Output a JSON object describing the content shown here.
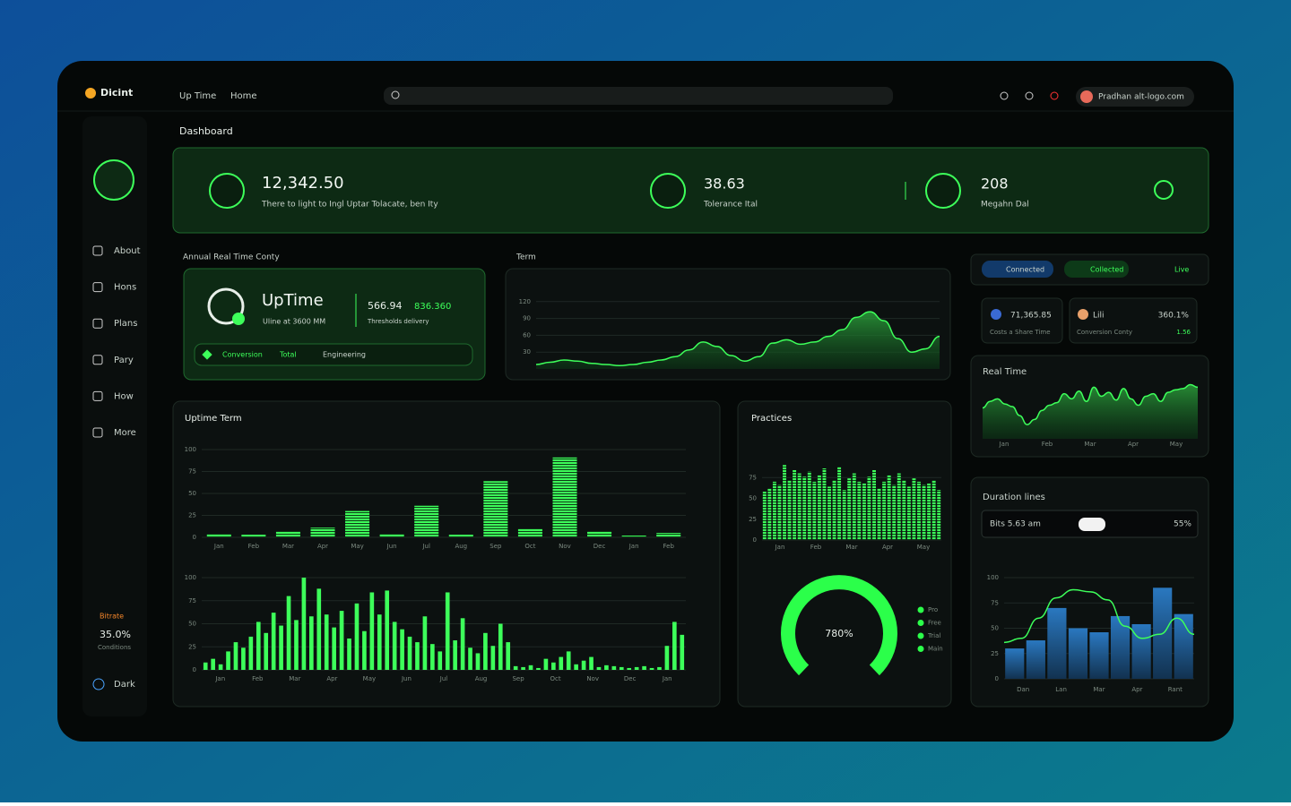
{
  "header": {
    "brand": "Dicint",
    "nav": [
      "Up Time",
      "Home"
    ],
    "user": "Pradhan alt-logo.com"
  },
  "sidebar": {
    "items": [
      "About",
      "Hons",
      "Plans",
      "Pary",
      "How",
      "More"
    ],
    "stat_label": "Bitrate",
    "stat_value": "35.0%",
    "stat_caption": "Conditions",
    "footer": "Dark"
  },
  "page_title": "Dashboard",
  "summary": [
    {
      "value": "12,342.50",
      "caption": "There to light to Ingl Uptar Tolacate, ben Ity"
    },
    {
      "value": "38.63",
      "caption": "Tolerance Ital"
    },
    {
      "value": "208",
      "caption": "Megahn Dal"
    }
  ],
  "uptime_card": {
    "section": "Annual Real Time Conty",
    "title": "UpTime",
    "subtitle": "Uline at 3600 MM",
    "metric_a": "566.94",
    "metric_b": "836.360",
    "metric_caption": "Thresholds delivery",
    "footer": [
      "Conversion",
      "Total",
      "Engineering"
    ]
  },
  "term_chart": {
    "title": "Term",
    "ylim": [
      0,
      150
    ],
    "yticks": [
      30,
      60,
      90,
      120
    ],
    "values": [
      8,
      12,
      16,
      14,
      10,
      8,
      6,
      8,
      12,
      16,
      22,
      34,
      48,
      40,
      24,
      14,
      22,
      46,
      52,
      44,
      48,
      58,
      70,
      92,
      102,
      86,
      54,
      30,
      36,
      58
    ]
  },
  "tabs": [
    "Connected",
    "Collected",
    "Live"
  ],
  "mini_cards": [
    {
      "value": "71,365.85",
      "caption": "Costs a Share Time"
    },
    {
      "label": "Lili",
      "value": "360.1%",
      "caption": "Conversion Conty",
      "delta": "1.56"
    }
  ],
  "realtime_chart": {
    "title": "Real Time",
    "ylim": [
      0,
      100
    ],
    "categories": [
      "Jan",
      "Feb",
      "Mar",
      "Apr",
      "May"
    ],
    "values": [
      48,
      58,
      62,
      54,
      50,
      36,
      22,
      30,
      44,
      52,
      56,
      70,
      62,
      74,
      58,
      80,
      66,
      72,
      60,
      78,
      62,
      52,
      66,
      70,
      58,
      72,
      76,
      78,
      84,
      80
    ]
  },
  "uptime_term": {
    "title": "Uptime Term",
    "top": {
      "ylim": [
        0,
        100
      ],
      "yticks": [
        0,
        25,
        50,
        75,
        100
      ],
      "categories": [
        "Jan",
        "Feb",
        "Mar",
        "Apr",
        "May",
        "Jun",
        "Jul",
        "Aug",
        "Sep",
        "Oct",
        "Nov",
        "Dec",
        "Jan",
        "Feb"
      ],
      "values": [
        4,
        3,
        7,
        11,
        30,
        4,
        36,
        3,
        64,
        10,
        91,
        7,
        2,
        5
      ]
    },
    "bottom": {
      "ylim": [
        0,
        100
      ],
      "yticks": [
        0,
        25,
        50,
        75,
        100
      ],
      "categories": [
        "Jan",
        "Feb",
        "Mar",
        "Apr",
        "May",
        "Jun",
        "Jul",
        "Aug",
        "Sep",
        "Oct",
        "Nov",
        "Dec",
        "Jan"
      ],
      "values": [
        8,
        12,
        6,
        20,
        30,
        24,
        36,
        52,
        40,
        62,
        48,
        80,
        54,
        100,
        58,
        88,
        60,
        46,
        64,
        34,
        72,
        42,
        84,
        60,
        86,
        52,
        44,
        36,
        30,
        58,
        28,
        20,
        84,
        32,
        56,
        24,
        18,
        40,
        26,
        50,
        30,
        4,
        3,
        5,
        2,
        12,
        8,
        14,
        20,
        6,
        10,
        14,
        3,
        5,
        4,
        3,
        2,
        3,
        4,
        2,
        3,
        26,
        52,
        38
      ]
    }
  },
  "practices": {
    "title": "Practices",
    "ylim": [
      0,
      100
    ],
    "yticks": [
      0,
      25,
      50,
      75
    ],
    "categories": [
      "Jan",
      "Feb",
      "Mar",
      "Apr",
      "May"
    ],
    "values": [
      58,
      62,
      70,
      66,
      90,
      72,
      84,
      80,
      76,
      82,
      70,
      78,
      86,
      64,
      72,
      88,
      60,
      74,
      80,
      70,
      68,
      76,
      84,
      62,
      70,
      78,
      66,
      80,
      72,
      64,
      74,
      70,
      66,
      68,
      72,
      60
    ],
    "gauge_label": "780%",
    "legend": [
      "Pro",
      "Free",
      "Trial",
      "Main"
    ]
  },
  "duration": {
    "title": "Duration lines",
    "input": "Bits 5.63 am",
    "percent": "55%",
    "ylim": [
      0,
      100
    ],
    "yticks": [
      0,
      25,
      50,
      75,
      100
    ],
    "categories": [
      "Dan",
      "Lan",
      "Mar",
      "Apr",
      "Rant"
    ],
    "bars": [
      30,
      38,
      70,
      50,
      46,
      62,
      54,
      90,
      64
    ],
    "line": [
      36,
      40,
      60,
      80,
      88,
      86,
      78,
      52,
      40,
      44,
      60,
      44
    ]
  }
}
